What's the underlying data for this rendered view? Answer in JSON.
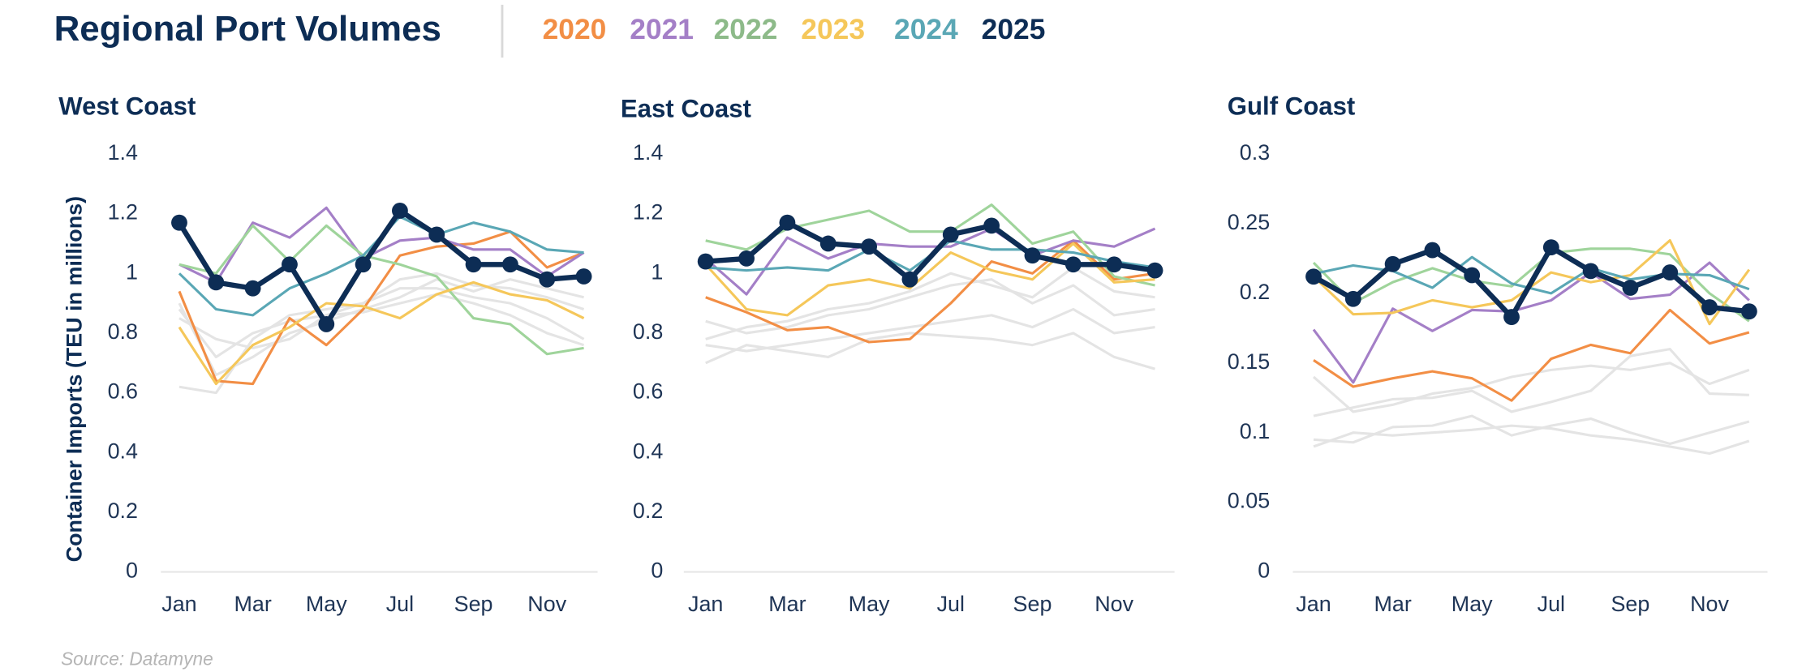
{
  "header": {
    "title": "Regional Port Volumes",
    "source": "Source: Datamyne"
  },
  "chart_data": [
    {
      "type": "line",
      "title": "West Coast",
      "y_label": "Container Imports (TEU in millions)",
      "categories": [
        "Jan",
        null,
        "Mar",
        null,
        "May",
        null,
        "Jul",
        null,
        "Sep",
        null,
        "Nov",
        null
      ],
      "ylim": [
        0,
        1.4
      ],
      "yticks": [
        0,
        0.2,
        0.4,
        0.6,
        0.8,
        1,
        1.2,
        1.4
      ],
      "grid": false,
      "series": [
        {
          "color": "#e4e4e4",
          "values": [
            0.62,
            0.6,
            0.78,
            0.86,
            0.88,
            0.9,
            0.95,
            0.95,
            0.92,
            0.9,
            0.85,
            0.78
          ]
        },
        {
          "color": "#e4e4e4",
          "values": [
            0.88,
            0.72,
            0.8,
            0.84,
            0.86,
            0.9,
            0.98,
            1.0,
            0.96,
            0.95,
            0.92,
            0.88
          ]
        },
        {
          "color": "#e4e4e4",
          "values": [
            0.9,
            0.66,
            0.72,
            0.8,
            0.84,
            0.88,
            0.92,
            0.98,
            0.94,
            0.98,
            0.95,
            0.92
          ]
        },
        {
          "color": "#e4e4e4",
          "values": [
            0.85,
            0.78,
            0.75,
            0.78,
            0.86,
            0.87,
            0.9,
            0.93,
            0.9,
            0.86,
            0.8,
            0.76
          ]
        },
        {
          "name": "2020",
          "color": "#f28e45",
          "values": [
            0.94,
            0.64,
            0.63,
            0.85,
            0.76,
            0.88,
            1.06,
            1.09,
            1.1,
            1.14,
            1.02,
            1.07
          ]
        },
        {
          "name": "2021",
          "color": "#a47fc7",
          "values": [
            1.03,
            0.97,
            1.17,
            1.12,
            1.22,
            1.05,
            1.11,
            1.12,
            1.08,
            1.08,
            0.99,
            1.07
          ]
        },
        {
          "name": "2022",
          "color": "#9fd49b",
          "values": [
            1.03,
            1.0,
            1.16,
            1.04,
            1.16,
            1.06,
            1.03,
            0.99,
            0.85,
            0.83,
            0.73,
            0.75
          ]
        },
        {
          "name": "2023",
          "color": "#f5c75a",
          "values": [
            0.82,
            0.63,
            0.76,
            0.82,
            0.9,
            0.89,
            0.85,
            0.93,
            0.97,
            0.93,
            0.91,
            0.85
          ]
        },
        {
          "name": "2024",
          "color": "#5aa7b5",
          "values": [
            1.0,
            0.88,
            0.86,
            0.95,
            1.0,
            1.06,
            1.19,
            1.13,
            1.17,
            1.14,
            1.08,
            1.07
          ]
        },
        {
          "name": "2025",
          "color": "#0d2d55",
          "markers": true,
          "values": [
            1.17,
            0.97,
            0.95,
            1.03,
            0.83,
            1.03,
            1.21,
            1.13,
            1.03,
            1.03,
            0.98,
            0.99
          ]
        }
      ]
    },
    {
      "type": "line",
      "title": "East Coast",
      "categories": [
        "Jan",
        null,
        "Mar",
        null,
        "May",
        null,
        "Jul",
        null,
        "Sep",
        null,
        "Nov",
        null
      ],
      "ylim": [
        0,
        1.4
      ],
      "yticks": [
        0,
        0.2,
        0.4,
        0.6,
        0.8,
        1,
        1.2,
        1.4
      ],
      "grid": false,
      "series": [
        {
          "color": "#e4e4e4",
          "values": [
            0.7,
            0.76,
            0.74,
            0.72,
            0.78,
            0.8,
            0.79,
            0.78,
            0.76,
            0.8,
            0.72,
            0.68
          ]
        },
        {
          "color": "#e4e4e4",
          "values": [
            0.76,
            0.74,
            0.76,
            0.78,
            0.8,
            0.82,
            0.84,
            0.86,
            0.82,
            0.88,
            0.8,
            0.82
          ]
        },
        {
          "color": "#e4e4e4",
          "values": [
            0.84,
            0.8,
            0.82,
            0.86,
            0.88,
            0.92,
            0.96,
            0.98,
            0.9,
            0.96,
            0.86,
            0.88
          ]
        },
        {
          "color": "#e4e4e4",
          "values": [
            0.78,
            0.82,
            0.84,
            0.88,
            0.9,
            0.94,
            1.0,
            0.96,
            0.92,
            1.02,
            0.94,
            0.92
          ]
        },
        {
          "name": "2020",
          "color": "#f28e45",
          "values": [
            0.92,
            0.87,
            0.81,
            0.82,
            0.77,
            0.78,
            0.9,
            1.04,
            1.0,
            1.11,
            0.98,
            1.0
          ]
        },
        {
          "name": "2021",
          "color": "#a47fc7",
          "values": [
            1.05,
            0.93,
            1.12,
            1.05,
            1.1,
            1.09,
            1.09,
            1.15,
            1.06,
            1.11,
            1.09,
            1.15
          ]
        },
        {
          "name": "2022",
          "color": "#9fd49b",
          "values": [
            1.11,
            1.08,
            1.15,
            1.18,
            1.21,
            1.14,
            1.14,
            1.23,
            1.1,
            1.14,
            0.99,
            0.96
          ]
        },
        {
          "name": "2023",
          "color": "#f5c75a",
          "values": [
            1.03,
            0.88,
            0.86,
            0.96,
            0.98,
            0.95,
            1.07,
            1.01,
            0.98,
            1.1,
            0.97,
            0.98
          ]
        },
        {
          "name": "2024",
          "color": "#5aa7b5",
          "values": [
            1.02,
            1.01,
            1.02,
            1.01,
            1.08,
            1.01,
            1.11,
            1.08,
            1.08,
            1.07,
            1.04,
            1.02
          ]
        },
        {
          "name": "2025",
          "color": "#0d2d55",
          "markers": true,
          "values": [
            1.04,
            1.05,
            1.17,
            1.1,
            1.09,
            0.98,
            1.13,
            1.16,
            1.06,
            1.03,
            1.03,
            1.01
          ]
        }
      ]
    },
    {
      "type": "line",
      "title": "Gulf Coast",
      "categories": [
        "Jan",
        null,
        "Mar",
        null,
        "May",
        null,
        "Jul",
        null,
        "Sep",
        null,
        "Nov",
        null
      ],
      "ylim": [
        0,
        0.3
      ],
      "yticks": [
        0,
        0.05,
        0.1,
        0.15,
        0.2,
        0.25,
        0.3
      ],
      "grid": false,
      "series": [
        {
          "color": "#e4e4e4",
          "values": [
            0.14,
            0.115,
            0.12,
            0.128,
            0.132,
            0.14,
            0.145,
            0.148,
            0.145,
            0.15,
            0.135,
            0.145
          ]
        },
        {
          "color": "#e4e4e4",
          "values": [
            0.112,
            0.118,
            0.124,
            0.125,
            0.13,
            0.115,
            0.122,
            0.13,
            0.155,
            0.16,
            0.128,
            0.127
          ]
        },
        {
          "color": "#e4e4e4",
          "values": [
            0.095,
            0.093,
            0.104,
            0.105,
            0.112,
            0.098,
            0.105,
            0.11,
            0.1,
            0.092,
            0.1,
            0.108
          ]
        },
        {
          "color": "#e4e4e4",
          "values": [
            0.09,
            0.1,
            0.098,
            0.1,
            0.102,
            0.105,
            0.103,
            0.098,
            0.095,
            0.09,
            0.085,
            0.094
          ]
        },
        {
          "name": "2020",
          "color": "#f28e45",
          "values": [
            0.152,
            0.133,
            0.139,
            0.144,
            0.139,
            0.123,
            0.153,
            0.163,
            0.157,
            0.188,
            0.164,
            0.172
          ]
        },
        {
          "name": "2021",
          "color": "#a47fc7",
          "values": [
            0.174,
            0.136,
            0.189,
            0.173,
            0.188,
            0.187,
            0.195,
            0.215,
            0.196,
            0.199,
            0.222,
            0.195
          ]
        },
        {
          "name": "2022",
          "color": "#9fd49b",
          "values": [
            0.222,
            0.193,
            0.208,
            0.218,
            0.209,
            0.205,
            0.229,
            0.232,
            0.232,
            0.228,
            0.2,
            0.18
          ]
        },
        {
          "name": "2023",
          "color": "#f5c75a",
          "values": [
            0.212,
            0.185,
            0.186,
            0.195,
            0.19,
            0.195,
            0.215,
            0.208,
            0.213,
            0.238,
            0.178,
            0.217
          ]
        },
        {
          "name": "2024",
          "color": "#5aa7b5",
          "values": [
            0.214,
            0.22,
            0.216,
            0.204,
            0.226,
            0.207,
            0.2,
            0.218,
            0.21,
            0.214,
            0.213,
            0.203
          ]
        },
        {
          "name": "2025",
          "color": "#0d2d55",
          "markers": true,
          "values": [
            0.212,
            0.196,
            0.221,
            0.231,
            0.213,
            0.183,
            0.233,
            0.216,
            0.204,
            0.215,
            0.19,
            0.187
          ]
        }
      ]
    }
  ]
}
